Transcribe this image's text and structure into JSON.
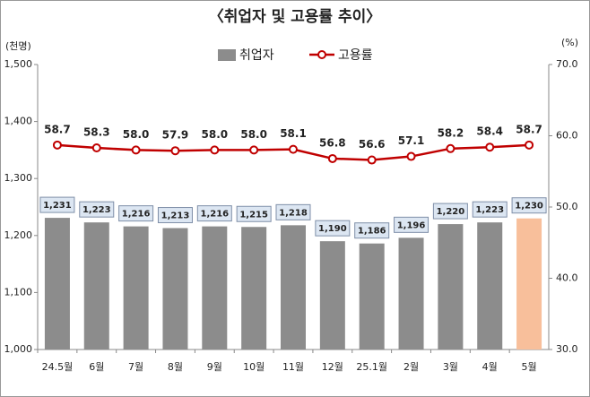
{
  "chart_data": {
    "type": "bar-line",
    "title": "〈취업자 및 고용률 추이〉",
    "y_label": "(천명)",
    "y2_label": "(%)",
    "categories": [
      "24.5월",
      "6월",
      "7월",
      "8월",
      "9월",
      "10월",
      "11월",
      "12월",
      "25.1월",
      "2월",
      "3월",
      "4월",
      "5월"
    ],
    "series": [
      {
        "name": "취업자",
        "type": "bar",
        "color": "#8c8c8c",
        "colors": [
          "#8c8c8c",
          "#8c8c8c",
          "#8c8c8c",
          "#8c8c8c",
          "#8c8c8c",
          "#8c8c8c",
          "#8c8c8c",
          "#8c8c8c",
          "#8c8c8c",
          "#8c8c8c",
          "#8c8c8c",
          "#8c8c8c",
          "#f8bf9b"
        ],
        "values": [
          1231,
          1223,
          1216,
          1213,
          1216,
          1215,
          1218,
          1190,
          1186,
          1196,
          1220,
          1223,
          1230
        ],
        "value_labels": [
          "1,231",
          "1,223",
          "1,216",
          "1,213",
          "1,216",
          "1,215",
          "1,218",
          "1,190",
          "1,186",
          "1,196",
          "1,220",
          "1,223",
          "1,230"
        ]
      },
      {
        "name": "고용률",
        "type": "line",
        "axis": "y2",
        "color": "#c00000",
        "values": [
          58.7,
          58.3,
          58.0,
          57.9,
          58.0,
          58.0,
          58.1,
          56.8,
          56.6,
          57.1,
          58.2,
          58.4,
          58.7
        ],
        "value_labels": [
          "58.7",
          "58.3",
          "58.0",
          "57.9",
          "58.0",
          "58.0",
          "58.1",
          "56.8",
          "56.6",
          "57.1",
          "58.2",
          "58.4",
          "58.7"
        ]
      }
    ],
    "ylim": [
      1000,
      1500
    ],
    "yticks": [
      {
        "value": 1000,
        "label": "1,000"
      },
      {
        "value": 1100,
        "label": "1,100"
      },
      {
        "value": 1200,
        "label": "1,200"
      },
      {
        "value": 1300,
        "label": "1,300"
      },
      {
        "value": 1400,
        "label": "1,400"
      },
      {
        "value": 1500,
        "label": "1,500"
      }
    ],
    "y2lim": [
      30,
      70
    ],
    "y2ticks": [
      {
        "value": 30,
        "label": "30.0"
      },
      {
        "value": 40,
        "label": "40.0"
      },
      {
        "value": 50,
        "label": "50.0"
      },
      {
        "value": 60,
        "label": "60.0"
      },
      {
        "value": 70,
        "label": "70.0"
      }
    ],
    "grid": false
  }
}
